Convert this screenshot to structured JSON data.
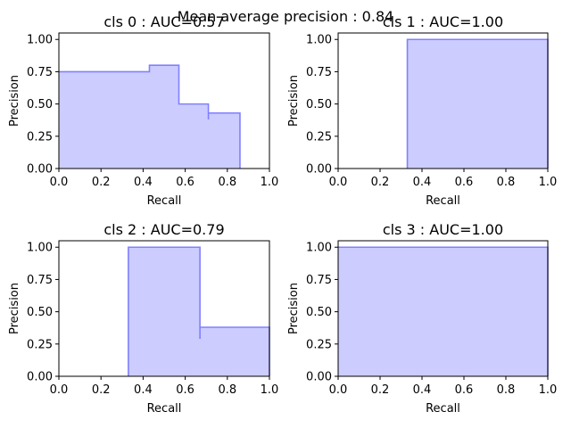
{
  "figure": {
    "suptitle": "Mean average precision : 0.84",
    "fill_color": "#ccccff",
    "line_color": "#8080ff"
  },
  "chart_data": [
    {
      "type": "area",
      "title": "cls 0 : AUC=0.57",
      "xlabel": "Recall",
      "ylabel": "Precision",
      "xlim": [
        0,
        1
      ],
      "ylim": [
        0,
        1.05
      ],
      "x_ticks": [
        "0.0",
        "0.2",
        "0.4",
        "0.6",
        "0.8",
        "1.0"
      ],
      "y_ticks": [
        "0.00",
        "0.25",
        "0.50",
        "0.75",
        "1.00"
      ],
      "step_points": [
        [
          0,
          0.75
        ],
        [
          0.43,
          0.75
        ],
        [
          0.43,
          0.8
        ],
        [
          0.57,
          0.8
        ],
        [
          0.57,
          0.5
        ],
        [
          0.71,
          0.5
        ],
        [
          0.71,
          0.38
        ],
        [
          0.71,
          0.43
        ],
        [
          0.86,
          0.43
        ],
        [
          0.86,
          0
        ]
      ]
    },
    {
      "type": "area",
      "title": "cls 1 : AUC=1.00",
      "xlabel": "Recall",
      "ylabel": "Precision",
      "xlim": [
        0,
        1
      ],
      "ylim": [
        0,
        1.05
      ],
      "x_ticks": [
        "0.0",
        "0.2",
        "0.4",
        "0.6",
        "0.8",
        "1.0"
      ],
      "y_ticks": [
        "0.00",
        "0.25",
        "0.50",
        "0.75",
        "1.00"
      ],
      "step_points": [
        [
          0.33,
          0
        ],
        [
          0.33,
          1.0
        ],
        [
          1.0,
          1.0
        ],
        [
          1.0,
          0
        ]
      ]
    },
    {
      "type": "area",
      "title": "cls 2 : AUC=0.79",
      "xlabel": "Recall",
      "ylabel": "Precision",
      "xlim": [
        0,
        1
      ],
      "ylim": [
        0,
        1.05
      ],
      "x_ticks": [
        "0.0",
        "0.2",
        "0.4",
        "0.6",
        "0.8",
        "1.0"
      ],
      "y_ticks": [
        "0.00",
        "0.25",
        "0.50",
        "0.75",
        "1.00"
      ],
      "step_points": [
        [
          0.33,
          0
        ],
        [
          0.33,
          1.0
        ],
        [
          0.67,
          1.0
        ],
        [
          0.67,
          0.29
        ],
        [
          0.67,
          0.38
        ],
        [
          1.0,
          0.38
        ],
        [
          1.0,
          0
        ]
      ]
    },
    {
      "type": "area",
      "title": "cls 3 : AUC=1.00",
      "xlabel": "Recall",
      "ylabel": "Precision",
      "xlim": [
        0,
        1
      ],
      "ylim": [
        0,
        1.05
      ],
      "x_ticks": [
        "0.0",
        "0.2",
        "0.4",
        "0.6",
        "0.8",
        "1.0"
      ],
      "y_ticks": [
        "0.00",
        "0.25",
        "0.50",
        "0.75",
        "1.00"
      ],
      "step_points": [
        [
          0,
          1.0
        ],
        [
          1.0,
          1.0
        ],
        [
          1.0,
          0
        ]
      ]
    }
  ]
}
